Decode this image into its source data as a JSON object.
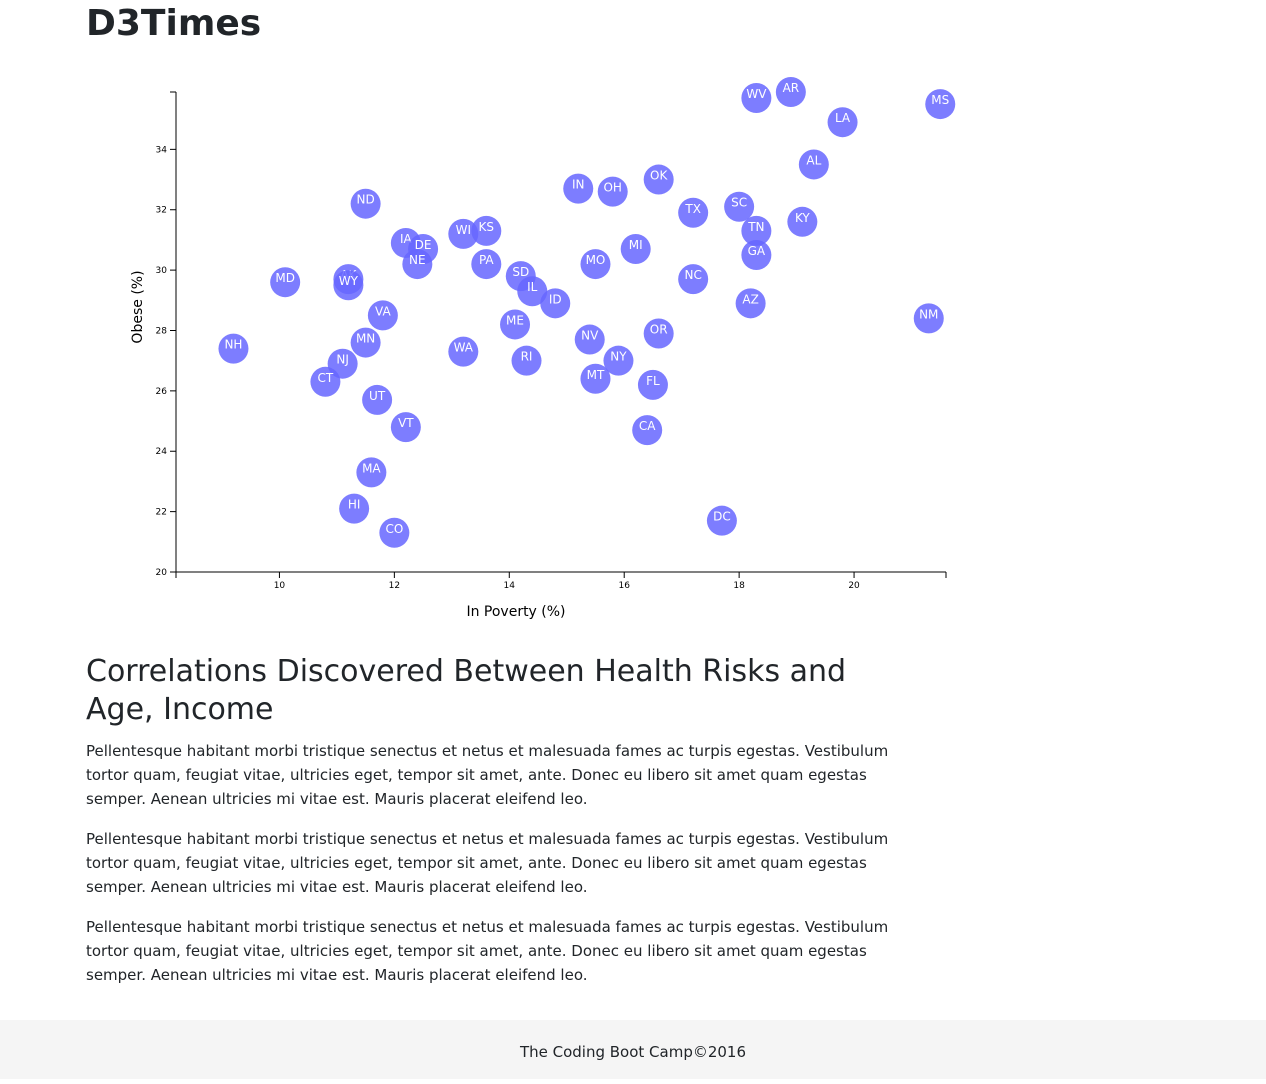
{
  "page": {
    "title": "D3Times",
    "article_heading": "Correlations Discovered Between Health Risks and Age, Income",
    "paragraphs": [
      "Pellentesque habitant morbi tristique senectus et netus et malesuada fames ac turpis egestas. Vestibulum tortor quam, feugiat vitae, ultricies eget, tempor sit amet, ante. Donec eu libero sit amet quam egestas semper. Aenean ultricies mi vitae est. Mauris placerat eleifend leo.",
      "Pellentesque habitant morbi tristique senectus et netus et malesuada fames ac turpis egestas. Vestibulum tortor quam, feugiat vitae, ultricies eget, tempor sit amet, ante. Donec eu libero sit amet quam egestas semper. Aenean ultricies mi vitae est. Mauris placerat eleifend leo.",
      "Pellentesque habitant morbi tristique senectus et netus et malesuada fames ac turpis egestas. Vestibulum tortor quam, feugiat vitae, ultricies eget, tempor sit amet, ante. Donec eu libero sit amet quam egestas semper. Aenean ultricies mi vitae est. Mauris placerat eleifend leo."
    ],
    "footer": "The Coding Boot Camp©2016"
  },
  "chart_data": {
    "type": "scatter",
    "xlabel": "In Poverty (%)",
    "ylabel": "Obese (%)",
    "xlim": [
      8.2,
      21.6
    ],
    "ylim": [
      20,
      35.9
    ],
    "xticks": [
      10,
      12,
      14,
      16,
      18,
      20
    ],
    "yticks": [
      20,
      22,
      24,
      26,
      28,
      30,
      32,
      34
    ],
    "grid": false,
    "marker_color": "#6666ff",
    "label_color": "#ffffff",
    "points": [
      {
        "label": "WV",
        "x": 18.3,
        "y": 35.7
      },
      {
        "label": "AR",
        "x": 18.9,
        "y": 35.9
      },
      {
        "label": "MS",
        "x": 21.5,
        "y": 35.5
      },
      {
        "label": "LA",
        "x": 19.8,
        "y": 34.9
      },
      {
        "label": "AL",
        "x": 19.3,
        "y": 33.5
      },
      {
        "label": "IN",
        "x": 15.2,
        "y": 32.7
      },
      {
        "label": "OH",
        "x": 15.8,
        "y": 32.6
      },
      {
        "label": "OK",
        "x": 16.6,
        "y": 33.0
      },
      {
        "label": "ND",
        "x": 11.5,
        "y": 32.2
      },
      {
        "label": "SC",
        "x": 18.0,
        "y": 32.1
      },
      {
        "label": "TX",
        "x": 17.2,
        "y": 31.9
      },
      {
        "label": "KY",
        "x": 19.1,
        "y": 31.6
      },
      {
        "label": "WI",
        "x": 13.2,
        "y": 31.2
      },
      {
        "label": "KS",
        "x": 13.6,
        "y": 31.3
      },
      {
        "label": "TN",
        "x": 18.3,
        "y": 31.3
      },
      {
        "label": "IA",
        "x": 12.2,
        "y": 30.9
      },
      {
        "label": "DE",
        "x": 12.5,
        "y": 30.7
      },
      {
        "label": "MI",
        "x": 16.2,
        "y": 30.7
      },
      {
        "label": "GA",
        "x": 18.3,
        "y": 30.5
      },
      {
        "label": "NE",
        "x": 12.4,
        "y": 30.2
      },
      {
        "label": "PA",
        "x": 13.6,
        "y": 30.2
      },
      {
        "label": "MO",
        "x": 15.5,
        "y": 30.2
      },
      {
        "label": "SD",
        "x": 14.2,
        "y": 29.8
      },
      {
        "label": "AK",
        "x": 11.2,
        "y": 29.7
      },
      {
        "label": "WY",
        "x": 11.2,
        "y": 29.5
      },
      {
        "label": "MD",
        "x": 10.1,
        "y": 29.6
      },
      {
        "label": "NC",
        "x": 17.2,
        "y": 29.7
      },
      {
        "label": "IL",
        "x": 14.4,
        "y": 29.3
      },
      {
        "label": "ID",
        "x": 14.8,
        "y": 28.9
      },
      {
        "label": "AZ",
        "x": 18.2,
        "y": 28.9
      },
      {
        "label": "VA",
        "x": 11.8,
        "y": 28.5
      },
      {
        "label": "NM",
        "x": 21.3,
        "y": 28.4
      },
      {
        "label": "ME",
        "x": 14.1,
        "y": 28.2
      },
      {
        "label": "OR",
        "x": 16.6,
        "y": 27.9
      },
      {
        "label": "NV",
        "x": 15.4,
        "y": 27.7
      },
      {
        "label": "MN",
        "x": 11.5,
        "y": 27.6
      },
      {
        "label": "NH",
        "x": 9.2,
        "y": 27.4
      },
      {
        "label": "WA",
        "x": 13.2,
        "y": 27.3
      },
      {
        "label": "NY",
        "x": 15.9,
        "y": 27.0
      },
      {
        "label": "RI",
        "x": 14.3,
        "y": 27.0
      },
      {
        "label": "NJ",
        "x": 11.1,
        "y": 26.9
      },
      {
        "label": "MT",
        "x": 15.5,
        "y": 26.4
      },
      {
        "label": "CT",
        "x": 10.8,
        "y": 26.3
      },
      {
        "label": "FL",
        "x": 16.5,
        "y": 26.2
      },
      {
        "label": "UT",
        "x": 11.7,
        "y": 25.7
      },
      {
        "label": "VT",
        "x": 12.2,
        "y": 24.8
      },
      {
        "label": "CA",
        "x": 16.4,
        "y": 24.7
      },
      {
        "label": "MA",
        "x": 11.6,
        "y": 23.3
      },
      {
        "label": "HI",
        "x": 11.3,
        "y": 22.1
      },
      {
        "label": "DC",
        "x": 17.7,
        "y": 21.7
      },
      {
        "label": "CO",
        "x": 12.0,
        "y": 21.3
      }
    ]
  }
}
